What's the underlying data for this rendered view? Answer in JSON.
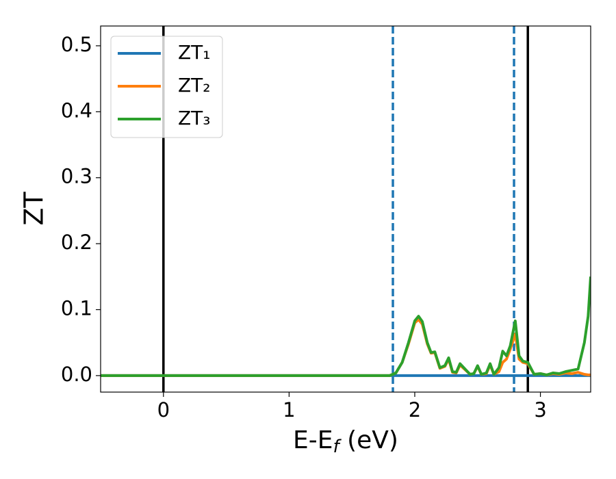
{
  "chart_data": {
    "type": "line",
    "ylabel": "ZT",
    "xlabel": [
      "E-E",
      "f",
      " (eV)"
    ],
    "x": [
      -0.5,
      1.8,
      1.85,
      1.9,
      1.95,
      2.0,
      2.03,
      2.06,
      2.1,
      2.13,
      2.16,
      2.2,
      2.24,
      2.27,
      2.3,
      2.33,
      2.36,
      2.4,
      2.44,
      2.47,
      2.5,
      2.53,
      2.57,
      2.6,
      2.63,
      2.67,
      2.7,
      2.73,
      2.76,
      2.8,
      2.83,
      2.86,
      2.9,
      2.95,
      3.0,
      3.05,
      3.1,
      3.15,
      3.2,
      3.25,
      3.3,
      3.35,
      3.38,
      3.4
    ],
    "series": [
      {
        "name": "ZT₁",
        "color": "#1f77b4",
        "values": [
          0,
          0,
          0,
          0,
          0,
          0,
          0,
          0,
          0,
          0,
          0,
          0,
          0,
          0,
          0,
          0,
          0,
          0,
          0,
          0,
          0,
          0,
          0,
          0,
          0,
          0,
          0,
          0,
          0,
          0,
          0,
          0,
          0,
          0,
          0,
          0,
          0,
          0,
          0,
          0,
          0,
          0,
          0,
          0
        ]
      },
      {
        "name": "ZT₂",
        "color": "#ff7f0e",
        "values": [
          0,
          0,
          0.004,
          0.02,
          0.048,
          0.08,
          0.085,
          0.078,
          0.048,
          0.034,
          0.035,
          0.011,
          0.014,
          0.025,
          0.005,
          0.004,
          0.016,
          0.009,
          0.002,
          0.003,
          0.014,
          0.002,
          0.003,
          0.016,
          0.002,
          0.006,
          0.02,
          0.025,
          0.04,
          0.063,
          0.025,
          0.02,
          0.018,
          0.002,
          0.003,
          0.001,
          0.003,
          0.002,
          0.004,
          0.003,
          0.005,
          0.002,
          0.001,
          0.001
        ]
      },
      {
        "name": "ZT₃",
        "color": "#2ca02c",
        "values": [
          0,
          0,
          0.004,
          0.02,
          0.05,
          0.083,
          0.09,
          0.082,
          0.05,
          0.035,
          0.036,
          0.012,
          0.015,
          0.027,
          0.006,
          0.005,
          0.018,
          0.01,
          0.002,
          0.003,
          0.015,
          0.002,
          0.004,
          0.018,
          0.002,
          0.012,
          0.037,
          0.03,
          0.045,
          0.083,
          0.03,
          0.022,
          0.02,
          0.002,
          0.003,
          0.001,
          0.004,
          0.003,
          0.006,
          0.008,
          0.01,
          0.05,
          0.09,
          0.15
        ]
      }
    ],
    "vlines": [
      {
        "x": 0,
        "color": "#000000",
        "style": "solid"
      },
      {
        "x": 2.9,
        "color": "#000000",
        "style": "solid"
      },
      {
        "x": 1.826,
        "color": "#1f77b4",
        "style": "dashed"
      },
      {
        "x": 2.79,
        "color": "#1f77b4",
        "style": "dashed"
      }
    ],
    "xlim": [
      -0.5,
      3.4
    ],
    "xticks": [
      0,
      1,
      2,
      3
    ],
    "ylim": [
      -0.025,
      0.53
    ],
    "yticks": [
      {
        "value": 0,
        "label": "0.0"
      },
      0.1,
      0.2,
      0.3,
      0.4,
      0.5
    ],
    "legend": "upper left"
  }
}
